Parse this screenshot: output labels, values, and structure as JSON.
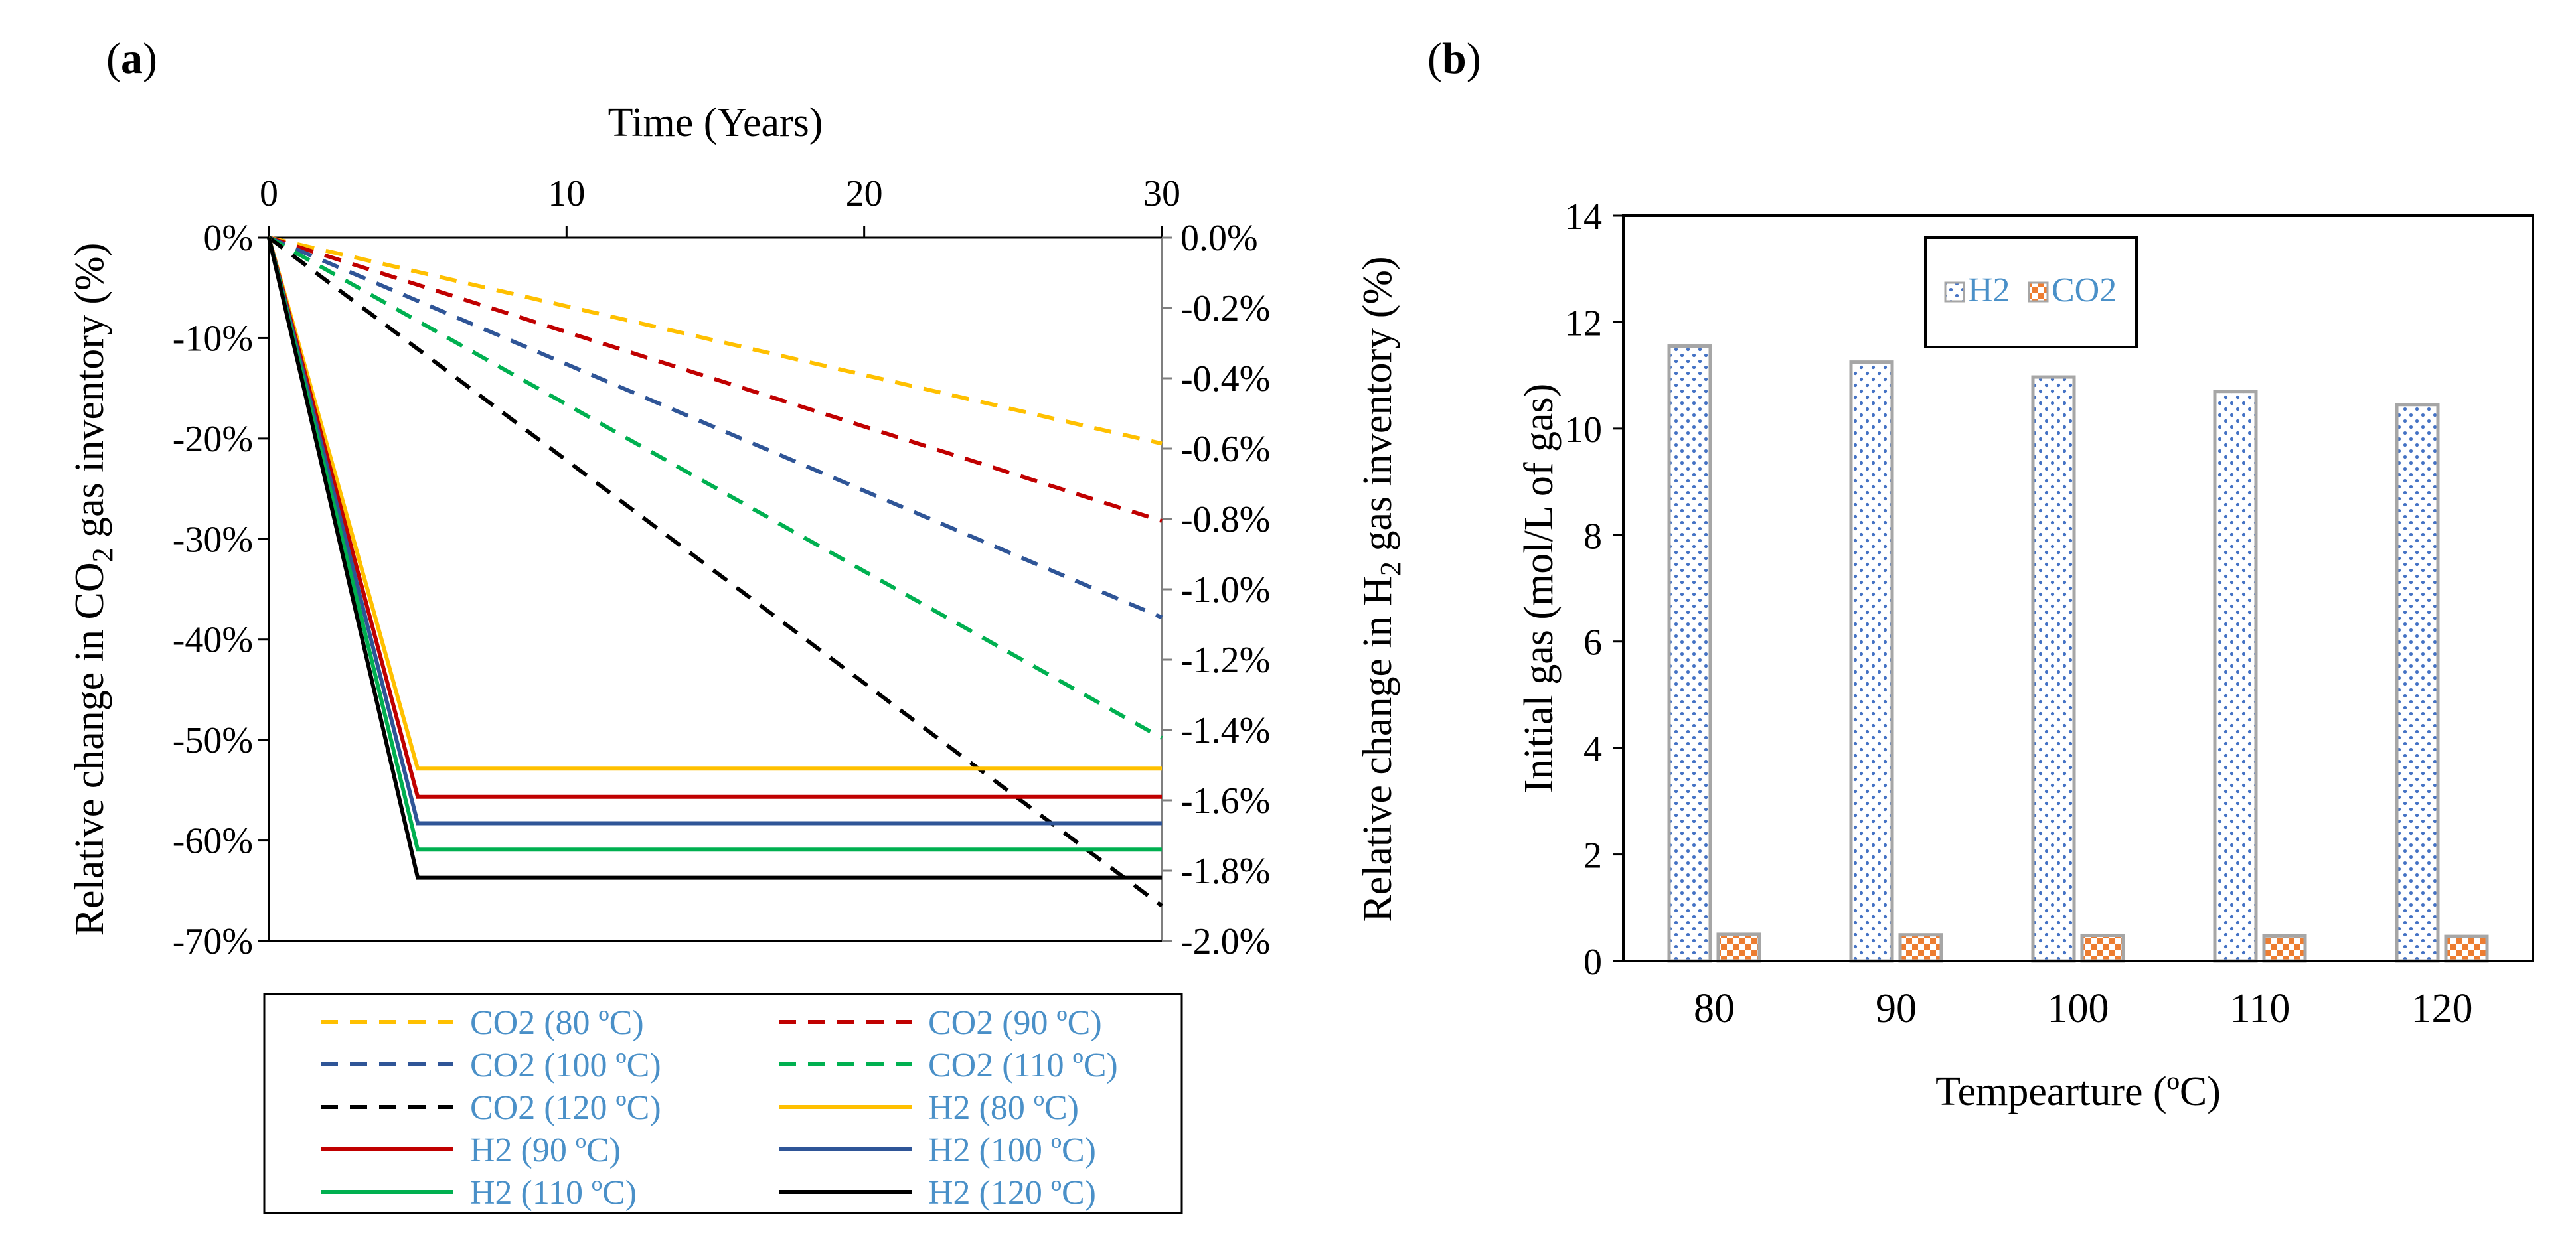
{
  "panels": {
    "a": {
      "open": "(",
      "letter": "a",
      "close": ")"
    },
    "b": {
      "open": "(",
      "letter": "b",
      "close": ")"
    }
  },
  "chart_data": [
    {
      "type": "line",
      "panel": "a",
      "xlabel": "Time (Years)",
      "ylabel_left": {
        "pre": "Relative change in CO",
        "sub": "2",
        "post": " gas inventory (%)"
      },
      "ylabel_right": {
        "pre": "Relative change in H",
        "sub": "2",
        "post": " gas inventory (%)"
      },
      "xlim": [
        0,
        30
      ],
      "x_ticks": [
        0,
        10,
        20,
        30
      ],
      "x_tick_labels": [
        "0",
        "10",
        "20",
        "30"
      ],
      "ylim_left": [
        -70,
        0
      ],
      "y_left_ticks": [
        0,
        -10,
        -20,
        -30,
        -40,
        -50,
        -60,
        -70
      ],
      "y_left_tick_labels": [
        "0%",
        "-10%",
        "-20%",
        "-30%",
        "-40%",
        "-50%",
        "-60%",
        "-70%"
      ],
      "ylim_right": [
        -2.0,
        0.0
      ],
      "y_right_ticks": [
        0.0,
        -0.2,
        -0.4,
        -0.6,
        -0.8,
        -1.0,
        -1.2,
        -1.4,
        -1.6,
        -1.8,
        -2.0
      ],
      "y_right_tick_labels": [
        "0.0%",
        "-0.2%",
        "-0.4%",
        "-0.6%",
        "-0.8%",
        "-1.0%",
        "-1.2%",
        "-1.4%",
        "-1.6%",
        "-1.8%",
        "-2.0%"
      ],
      "series": [
        {
          "name": "CO2 (80 ºC)",
          "axis": "left",
          "style": "dashed",
          "color": "#FFC000",
          "x": [
            0,
            30
          ],
          "y": [
            0,
            -20.5
          ]
        },
        {
          "name": "CO2 (90 ºC)",
          "axis": "left",
          "style": "dashed",
          "color": "#C00000",
          "x": [
            0,
            30
          ],
          "y": [
            0,
            -28.2
          ]
        },
        {
          "name": "CO2 (100 ºC)",
          "axis": "left",
          "style": "dashed",
          "color": "#2F5597",
          "x": [
            0,
            30
          ],
          "y": [
            0,
            -37.8
          ]
        },
        {
          "name": "CO2 (110 ºC)",
          "axis": "left",
          "style": "dashed",
          "color": "#00B050",
          "x": [
            0,
            30
          ],
          "y": [
            0,
            -49.8
          ]
        },
        {
          "name": "CO2 (120 ºC)",
          "axis": "left",
          "style": "dashed",
          "color": "#000000",
          "x": [
            0,
            30
          ],
          "y": [
            0,
            -66.5
          ]
        },
        {
          "name": "H2 (80 ºC)",
          "axis": "right",
          "style": "solid",
          "color": "#FFC000",
          "x": [
            0,
            5,
            30
          ],
          "y": [
            0,
            -1.51,
            -1.51
          ]
        },
        {
          "name": "H2 (90 ºC)",
          "axis": "right",
          "style": "solid",
          "color": "#C00000",
          "x": [
            0,
            5,
            30
          ],
          "y": [
            0,
            -1.59,
            -1.59
          ]
        },
        {
          "name": "H2 (100 ºC)",
          "axis": "right",
          "style": "solid",
          "color": "#2F5597",
          "x": [
            0,
            5,
            30
          ],
          "y": [
            0,
            -1.665,
            -1.665
          ]
        },
        {
          "name": "H2 (110 ºC)",
          "axis": "right",
          "style": "solid",
          "color": "#00B050",
          "x": [
            0,
            5,
            30
          ],
          "y": [
            0,
            -1.74,
            -1.74
          ]
        },
        {
          "name": "H2 (120 ºC)",
          "axis": "right",
          "style": "solid",
          "color": "#000000",
          "x": [
            0,
            5,
            30
          ],
          "y": [
            0,
            -1.82,
            -1.82
          ]
        }
      ]
    },
    {
      "type": "bar",
      "panel": "b",
      "xlabel": "Tempearture (ºC)",
      "ylabel": "Initial gas (mol/L of gas)",
      "categories": [
        "80",
        "90",
        "100",
        "110",
        "120"
      ],
      "ylim": [
        0,
        14
      ],
      "y_ticks": [
        0,
        2,
        4,
        6,
        8,
        10,
        12,
        14
      ],
      "y_tick_labels": [
        "0",
        "2",
        "4",
        "6",
        "8",
        "10",
        "12",
        "14"
      ],
      "series": [
        {
          "name": "H2",
          "values": [
            11.55,
            11.25,
            10.97,
            10.7,
            10.45
          ],
          "color": "#4472C4"
        },
        {
          "name": "CO2",
          "values": [
            0.5,
            0.49,
            0.48,
            0.47,
            0.46
          ],
          "color": "#ED7D31"
        }
      ]
    }
  ]
}
